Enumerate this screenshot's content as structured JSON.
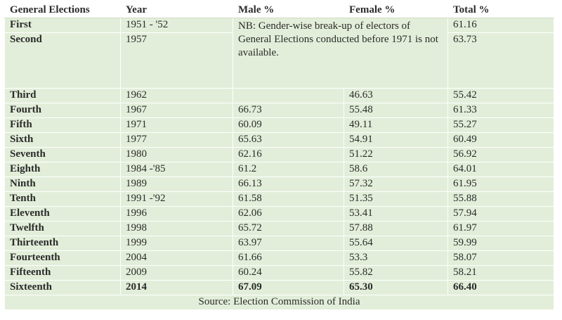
{
  "columns": [
    "General Elections",
    "Year",
    "Male %",
    "Female %",
    "Total %"
  ],
  "note": "NB: Gender-wise break-up of electors of General Elections conducted before 1971 is not available.",
  "rows": [
    {
      "name": "First",
      "year": "1951 - '52",
      "male": "",
      "female": "",
      "total": "61.16"
    },
    {
      "name": "Second",
      "year": "1957",
      "male": "",
      "female": "",
      "total": "63.73"
    },
    {
      "name": "Third",
      "year": "1962",
      "male": "",
      "female": "46.63",
      "total": "55.42"
    },
    {
      "name": "Fourth",
      "year": "1967",
      "male": "66.73",
      "female": "55.48",
      "total": "61.33"
    },
    {
      "name": "Fifth",
      "year": "1971",
      "male": "60.09",
      "female": "49.11",
      "total": "55.27"
    },
    {
      "name": "Sixth",
      "year": "1977",
      "male": "65.63",
      "female": "54.91",
      "total": "60.49"
    },
    {
      "name": "Seventh",
      "year": "1980",
      "male": "62.16",
      "female": "51.22",
      "total": "56.92"
    },
    {
      "name": "Eighth",
      "year": "1984 -'85",
      "male": "61.2",
      "female": "58.6",
      "total": "64.01"
    },
    {
      "name": "Ninth",
      "year": "1989",
      "male": "66.13",
      "female": "57.32",
      "total": "61.95"
    },
    {
      "name": "Tenth",
      "year": "1991 -'92",
      "male": "61.58",
      "female": "51.35",
      "total": "55.88"
    },
    {
      "name": "Eleventh",
      "year": "1996",
      "male": "62.06",
      "female": "53.41",
      "total": "57.94"
    },
    {
      "name": "Twelfth",
      "year": "1998",
      "male": "65.72",
      "female": "57.88",
      "total": "61.97"
    },
    {
      "name": "Thirteenth",
      "year": "1999",
      "male": "63.97",
      "female": "55.64",
      "total": "59.99"
    },
    {
      "name": "Fourteenth",
      "year": "2004",
      "male": "61.66",
      "female": "53.3",
      "total": "58.07"
    },
    {
      "name": "Fifteenth",
      "year": "2009",
      "male": "60.24",
      "female": "55.82",
      "total": "58.21"
    },
    {
      "name": "Sixteenth",
      "year": "2014",
      "male": "67.09",
      "female": "65.30",
      "total": "66.40"
    }
  ],
  "source": "Source: Election Commission of India",
  "colors": {
    "cell_background": "#e2eed9",
    "text": "#2b2b2b",
    "grid_line": "#ffffff"
  }
}
